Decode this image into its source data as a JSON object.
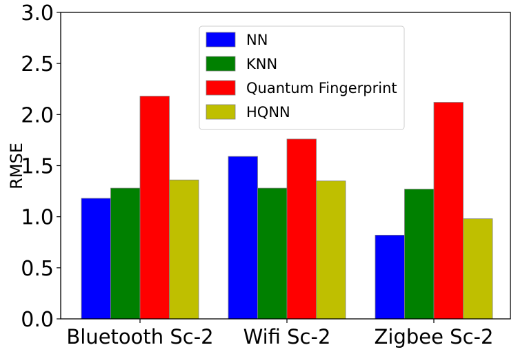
{
  "chart_data": {
    "type": "bar",
    "title": "",
    "xlabel": "",
    "ylabel": "RMSE",
    "categories": [
      "Bluetooth Sc-2",
      "Wifi Sc-2",
      "Zigbee Sc-2"
    ],
    "series": [
      {
        "name": "NN",
        "color": "#0000ff",
        "values": [
          1.18,
          1.59,
          0.82
        ]
      },
      {
        "name": "KNN",
        "color": "#008000",
        "values": [
          1.28,
          1.28,
          1.27
        ]
      },
      {
        "name": "Quantum Fingerprint",
        "color": "#ff0000",
        "values": [
          2.18,
          1.76,
          2.12
        ]
      },
      {
        "name": "HQNN",
        "color": "#bfbf00",
        "values": [
          1.36,
          1.35,
          0.98
        ]
      }
    ],
    "ylim": [
      0,
      3.0
    ],
    "yticks": [
      "0.0",
      "0.5",
      "1.0",
      "1.5",
      "2.0",
      "2.5",
      "3.0"
    ],
    "grid": false,
    "legend_position": "upper-center"
  }
}
